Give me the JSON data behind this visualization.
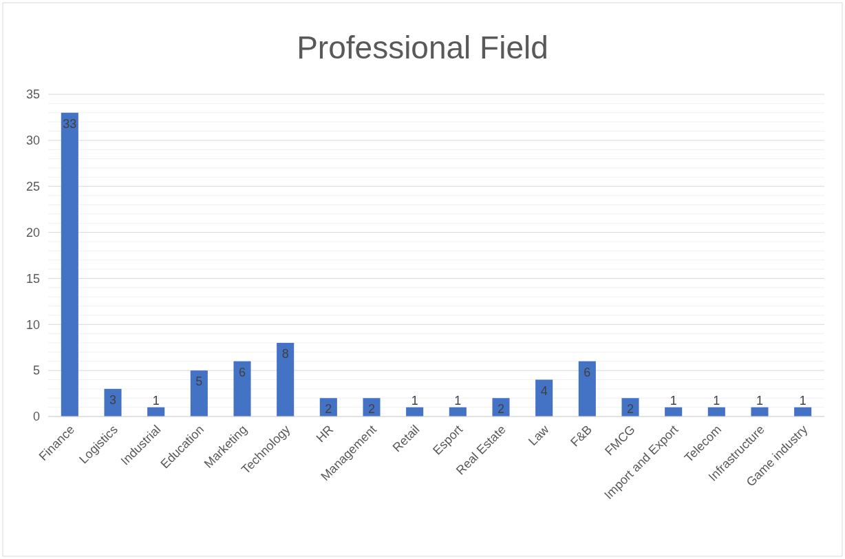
{
  "chart_data": {
    "type": "bar",
    "title": "Professional Field",
    "categories": [
      "Finance",
      "Logistics",
      "Industrial",
      "Education",
      "Marketing",
      "Technology",
      "HR",
      "Management",
      "Retail",
      "Esport",
      "Real Estate",
      "Law",
      "F&B",
      "FMCG",
      "Import and Export",
      "Telecom",
      "Infrastructure",
      "Game industry"
    ],
    "values": [
      33,
      3,
      1,
      5,
      6,
      8,
      2,
      2,
      1,
      1,
      2,
      4,
      6,
      2,
      1,
      1,
      1,
      1
    ],
    "color": "#4472c4",
    "ylim": [
      0,
      35
    ],
    "yticks": [
      0,
      {
        "value": 1,
        "label": null
      },
      {
        "value": 2,
        "label": null
      },
      {
        "value": 3,
        "label": null
      },
      {
        "value": 4,
        "label": null
      },
      5,
      {
        "value": 6,
        "label": null
      },
      {
        "value": 7,
        "label": null
      },
      {
        "value": 8,
        "label": null
      },
      {
        "value": 9,
        "label": null
      },
      10,
      {
        "value": 11,
        "label": null
      },
      {
        "value": 12,
        "label": null
      },
      {
        "value": 13,
        "label": null
      },
      {
        "value": 14,
        "label": null
      },
      15,
      {
        "value": 16,
        "label": null
      },
      {
        "value": 17,
        "label": null
      },
      {
        "value": 18,
        "label": null
      },
      {
        "value": 19,
        "label": null
      },
      20,
      {
        "value": 21,
        "label": null
      },
      {
        "value": 22,
        "label": null
      },
      {
        "value": 23,
        "label": null
      },
      {
        "value": 24,
        "label": null
      },
      25,
      {
        "value": 26,
        "label": null
      },
      {
        "value": 27,
        "label": null
      },
      {
        "value": 28,
        "label": null
      },
      {
        "value": 29,
        "label": null
      },
      30,
      {
        "value": 31,
        "label": null
      },
      {
        "value": 32,
        "label": null
      },
      {
        "value": 33,
        "label": null
      },
      {
        "value": 34,
        "label": null
      },
      35
    ],
    "grid": true,
    "data_labels": true
  }
}
